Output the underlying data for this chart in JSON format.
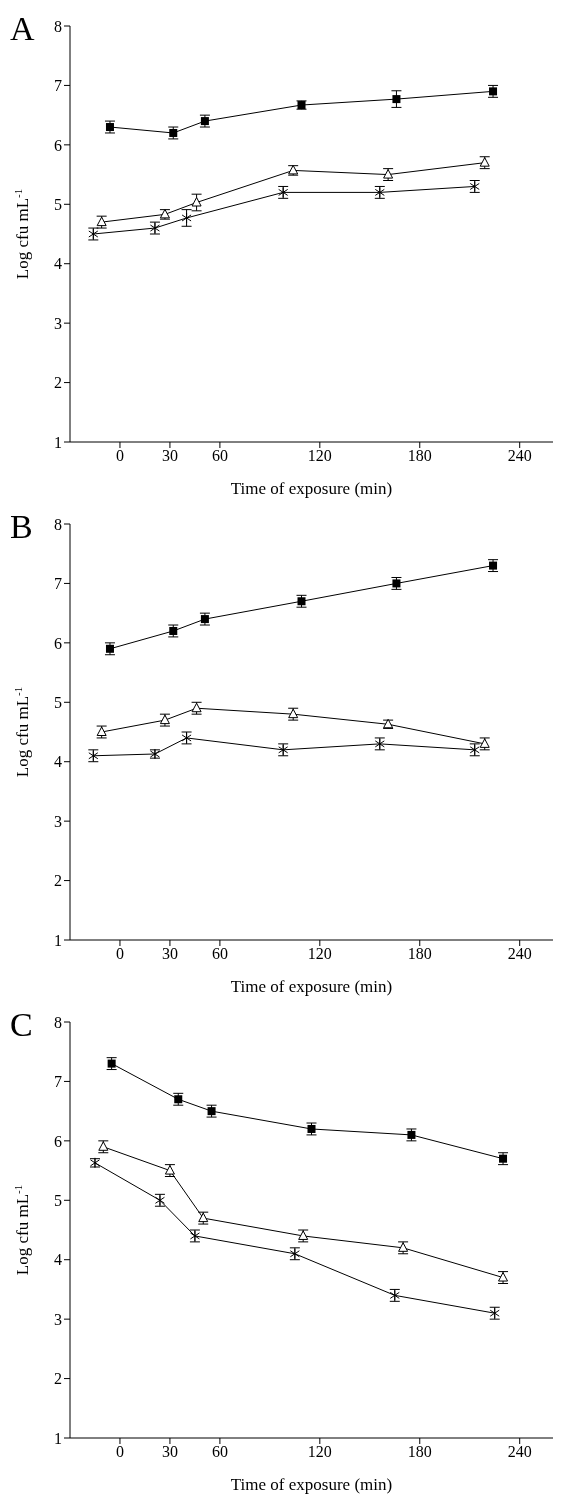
{
  "chart_data": [
    {
      "type": "line",
      "title": "A",
      "xlabel": "Time of exposure (min)",
      "ylabel": "Log cfu mL$^{-1}$",
      "xlim": [
        -30,
        260
      ],
      "xticks": [
        0,
        30,
        60,
        120,
        180,
        240
      ],
      "ylim": [
        1,
        8
      ],
      "yticks": [
        1,
        2,
        3,
        4,
        5,
        6,
        7,
        8
      ],
      "series": [
        {
          "color": "#000000",
          "marker": "square",
          "x": [
            -6,
            32,
            51,
            109,
            166,
            224
          ],
          "values": [
            6.3,
            6.2,
            6.4,
            6.67,
            6.77,
            6.9
          ],
          "errors": [
            0.1,
            0.1,
            0.1,
            0.07,
            0.14,
            0.1
          ]
        },
        {
          "color": "#000000",
          "marker": "triangle",
          "x": [
            -11,
            27,
            46,
            104,
            161,
            219
          ],
          "values": [
            4.7,
            4.83,
            5.03,
            5.57,
            5.5,
            5.7
          ],
          "errors": [
            0.1,
            0.08,
            0.14,
            0.08,
            0.1,
            0.1
          ]
        },
        {
          "color": "#000000",
          "marker": "cross",
          "x": [
            -16,
            21,
            40,
            98,
            156,
            213
          ],
          "values": [
            4.5,
            4.6,
            4.77,
            5.2,
            5.2,
            5.3
          ],
          "errors": [
            0.1,
            0.1,
            0.14,
            0.1,
            0.1,
            0.1
          ]
        }
      ]
    },
    {
      "type": "line",
      "title": "B",
      "xlabel": "Time of exposure (min)",
      "ylabel": "Log cfu mL$^{-1}$",
      "xlim": [
        -30,
        260
      ],
      "xticks": [
        0,
        30,
        60,
        120,
        180,
        240
      ],
      "ylim": [
        1,
        8
      ],
      "yticks": [
        1,
        2,
        3,
        4,
        5,
        6,
        7,
        8
      ],
      "series": [
        {
          "color": "#000000",
          "marker": "square",
          "x": [
            -6,
            32,
            51,
            109,
            166,
            224
          ],
          "values": [
            5.9,
            6.2,
            6.4,
            6.7,
            7.0,
            7.3
          ],
          "errors": [
            0.1,
            0.1,
            0.1,
            0.1,
            0.1,
            0.1
          ]
        },
        {
          "color": "#000000",
          "marker": "triangle",
          "x": [
            -11,
            27,
            46,
            104,
            161,
            219
          ],
          "values": [
            4.5,
            4.7,
            4.9,
            4.8,
            4.63,
            4.3
          ],
          "errors": [
            0.1,
            0.1,
            0.1,
            0.1,
            0.07,
            0.1
          ]
        },
        {
          "color": "#000000",
          "marker": "cross",
          "x": [
            -16,
            21,
            40,
            98,
            156,
            213
          ],
          "values": [
            4.1,
            4.13,
            4.4,
            4.2,
            4.3,
            4.2
          ],
          "errors": [
            0.1,
            0.07,
            0.1,
            0.1,
            0.1,
            0.1
          ]
        }
      ]
    },
    {
      "type": "line",
      "title": "C",
      "xlabel": "Time of exposure (min)",
      "ylabel": "Log cfu mL$^{-1}$",
      "xlim": [
        -30,
        260
      ],
      "xticks": [
        0,
        30,
        60,
        120,
        180,
        240
      ],
      "ylim": [
        1,
        8
      ],
      "yticks": [
        1,
        2,
        3,
        4,
        5,
        6,
        7,
        8
      ],
      "series": [
        {
          "color": "#000000",
          "marker": "square",
          "x": [
            -5,
            35,
            55,
            115,
            175,
            230
          ],
          "values": [
            7.3,
            6.7,
            6.5,
            6.2,
            6.1,
            5.7
          ],
          "errors": [
            0.1,
            0.1,
            0.1,
            0.1,
            0.1,
            0.1
          ]
        },
        {
          "color": "#000000",
          "marker": "triangle",
          "x": [
            -10,
            30,
            50,
            110,
            170,
            230
          ],
          "values": [
            5.9,
            5.5,
            4.7,
            4.4,
            4.2,
            3.7
          ],
          "errors": [
            0.1,
            0.1,
            0.1,
            0.1,
            0.1,
            0.1
          ]
        },
        {
          "color": "#000000",
          "marker": "cross",
          "x": [
            -15,
            24,
            45,
            105,
            165,
            225
          ],
          "values": [
            5.63,
            5.0,
            4.4,
            4.1,
            3.4,
            3.1
          ],
          "errors": [
            0.07,
            0.1,
            0.1,
            0.1,
            0.1,
            0.1
          ]
        }
      ]
    }
  ]
}
